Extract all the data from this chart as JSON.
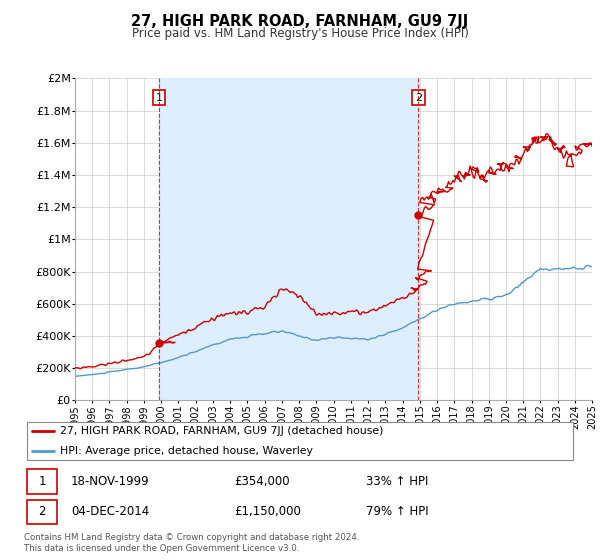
{
  "title": "27, HIGH PARK ROAD, FARNHAM, GU9 7JJ",
  "subtitle": "Price paid vs. HM Land Registry's House Price Index (HPI)",
  "hpi_label": "HPI: Average price, detached house, Waverley",
  "property_label": "27, HIGH PARK ROAD, FARNHAM, GU9 7JJ (detached house)",
  "sale1_date": "18-NOV-1999",
  "sale1_price": 354000,
  "sale1_hpi": "33% ↑ HPI",
  "sale2_date": "04-DEC-2014",
  "sale2_price": 1150000,
  "sale2_hpi": "79% ↑ HPI",
  "footer": "Contains HM Land Registry data © Crown copyright and database right 2024.\nThis data is licensed under the Open Government Licence v3.0.",
  "line_color_property": "#cc0000",
  "line_color_hpi": "#5599cc",
  "shade_color": "#ddeeff",
  "vline_color": "#cc0000",
  "bg_color": "#ffffff",
  "plot_bg_color": "#ffffff",
  "grid_color": "#cccccc",
  "sale1_x": 1999.88,
  "sale2_x": 2014.92,
  "ylim_max": 2000000,
  "xlim_min": 1995,
  "xlim_max": 2025,
  "yticks": [
    0,
    200000,
    400000,
    600000,
    800000,
    1000000,
    1200000,
    1400000,
    1600000,
    1800000,
    2000000
  ],
  "ytick_labels": [
    "£0",
    "£200K",
    "£400K",
    "£600K",
    "£800K",
    "£1M",
    "£1.2M",
    "£1.4M",
    "£1.6M",
    "£1.8M",
    "£2M"
  ]
}
